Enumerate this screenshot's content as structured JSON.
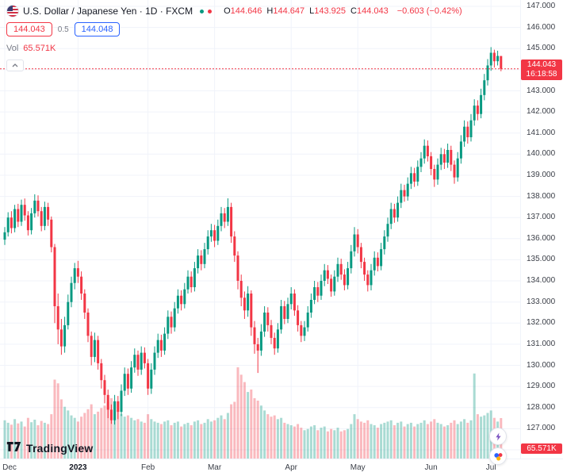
{
  "header": {
    "symbol_title": "U.S. Dollar / Japanese Yen · 1D · FXCM",
    "ohlc": {
      "o_label": "O",
      "o": "144.646",
      "h_label": "H",
      "h": "144.647",
      "l_label": "L",
      "l": "143.925",
      "c_label": "C",
      "c": "144.043",
      "change": "−0.603 (−0.42%)"
    }
  },
  "trade": {
    "sell_price": "144.043",
    "spread": "0.5",
    "buy_price": "144.048"
  },
  "volume_row": {
    "label": "Vol",
    "value": "65.571K"
  },
  "price_badge": {
    "price": "144.043",
    "countdown": "16:18:58"
  },
  "volume_badge": "65.571K",
  "footer": {
    "logo_text": "TradingView"
  },
  "chart_data": {
    "type": "candlestick",
    "title": "U.S. Dollar / Japanese Yen",
    "interval": "1D",
    "exchange": "FXCM",
    "last_price": 144.043,
    "price_line": 144.043,
    "ylim": [
      125.6,
      147.3
    ],
    "price_step": 1.0,
    "grid": true,
    "colors": {
      "up": "#089981",
      "down": "#f23645",
      "vol_up": "rgba(8,153,129,0.35)",
      "vol_down": "rgba(242,54,69,0.35)",
      "grid": "#f0f3fa",
      "axis_text": "#3a3e47",
      "accent_red": "#f23645",
      "accent_blue": "#2962ff"
    },
    "axes": {
      "price_ticks": [
        "147.000",
        "146.000",
        "145.000",
        "144.000",
        "143.000",
        "142.000",
        "141.000",
        "140.000",
        "139.000",
        "138.000",
        "137.000",
        "136.000",
        "135.000",
        "134.000",
        "133.000",
        "132.000",
        "131.000",
        "130.000",
        "129.000",
        "128.000",
        "127.000",
        "126.000"
      ],
      "time_ticks": [
        {
          "label": "Dec",
          "idx": 0
        },
        {
          "label": "2023",
          "idx": 22,
          "year": true
        },
        {
          "label": "Feb",
          "idx": 43
        },
        {
          "label": "Mar",
          "idx": 63
        },
        {
          "label": "Apr",
          "idx": 86
        },
        {
          "label": "May",
          "idx": 106
        },
        {
          "label": "Jun",
          "idx": 128
        },
        {
          "label": "Jul",
          "idx": 146
        }
      ]
    },
    "candles": [
      [
        135.95,
        136.55,
        135.7,
        136.3,
        62
      ],
      [
        136.3,
        137.25,
        136.1,
        137.0,
        58
      ],
      [
        137.0,
        137.3,
        136.25,
        136.5,
        55
      ],
      [
        136.5,
        137.6,
        136.3,
        137.4,
        64
      ],
      [
        137.4,
        137.65,
        136.55,
        136.8,
        57
      ],
      [
        136.8,
        137.85,
        136.6,
        137.6,
        60
      ],
      [
        137.6,
        137.9,
        136.85,
        137.1,
        52
      ],
      [
        137.1,
        137.3,
        136.15,
        136.4,
        66
      ],
      [
        136.4,
        137.45,
        136.2,
        137.2,
        59
      ],
      [
        137.2,
        138.1,
        137.0,
        137.8,
        63
      ],
      [
        137.8,
        138.05,
        137.05,
        137.3,
        54
      ],
      [
        137.3,
        137.5,
        136.35,
        136.6,
        61
      ],
      [
        136.6,
        137.75,
        136.4,
        137.5,
        58
      ],
      [
        137.5,
        137.7,
        136.6,
        136.9,
        56
      ],
      [
        136.9,
        137.05,
        135.35,
        135.6,
        72
      ],
      [
        135.6,
        135.75,
        132.0,
        132.8,
        128
      ],
      [
        132.8,
        133.4,
        131.0,
        131.7,
        122
      ],
      [
        131.7,
        132.2,
        130.5,
        130.9,
        96
      ],
      [
        130.9,
        132.3,
        130.6,
        131.9,
        84
      ],
      [
        131.9,
        133.35,
        131.7,
        133.0,
        78
      ],
      [
        133.0,
        134.2,
        132.75,
        133.9,
        70
      ],
      [
        133.9,
        134.85,
        133.6,
        134.6,
        66
      ],
      [
        134.6,
        134.95,
        133.9,
        134.2,
        60
      ],
      [
        134.2,
        134.45,
        133.1,
        133.4,
        68
      ],
      [
        133.4,
        133.6,
        132.2,
        132.5,
        74
      ],
      [
        132.5,
        132.7,
        131.1,
        131.4,
        80
      ],
      [
        131.4,
        131.6,
        130.0,
        130.4,
        88
      ],
      [
        130.4,
        131.55,
        130.15,
        131.2,
        72
      ],
      [
        131.2,
        131.4,
        129.8,
        130.1,
        76
      ],
      [
        130.1,
        130.3,
        128.9,
        129.3,
        82
      ],
      [
        129.3,
        129.55,
        128.2,
        128.6,
        86
      ],
      [
        128.6,
        128.85,
        127.5,
        127.9,
        92
      ],
      [
        127.9,
        128.15,
        127.23,
        127.4,
        98
      ],
      [
        127.4,
        128.6,
        127.2,
        128.3,
        90
      ],
      [
        128.3,
        128.55,
        127.45,
        127.8,
        76
      ],
      [
        127.8,
        129.1,
        127.6,
        128.8,
        72
      ],
      [
        128.8,
        129.9,
        128.55,
        129.6,
        68
      ],
      [
        129.6,
        129.85,
        128.6,
        128.9,
        70
      ],
      [
        128.9,
        130.2,
        128.7,
        129.9,
        66
      ],
      [
        129.9,
        130.8,
        129.65,
        130.5,
        62
      ],
      [
        130.5,
        130.7,
        129.5,
        129.8,
        64
      ],
      [
        129.8,
        130.9,
        129.55,
        130.6,
        60
      ],
      [
        130.6,
        130.85,
        129.85,
        130.1,
        58
      ],
      [
        130.1,
        130.3,
        128.6,
        128.9,
        72
      ],
      [
        128.9,
        130.1,
        128.65,
        129.8,
        64
      ],
      [
        129.8,
        130.9,
        129.55,
        130.6,
        60
      ],
      [
        130.6,
        131.5,
        130.35,
        131.2,
        58
      ],
      [
        131.2,
        131.45,
        130.4,
        130.7,
        56
      ],
      [
        130.7,
        131.8,
        130.5,
        131.5,
        60
      ],
      [
        131.5,
        132.6,
        131.25,
        132.3,
        62
      ],
      [
        132.3,
        132.55,
        131.5,
        131.8,
        54
      ],
      [
        131.8,
        133.0,
        131.6,
        132.7,
        58
      ],
      [
        132.7,
        133.6,
        132.45,
        133.3,
        60
      ],
      [
        133.3,
        133.55,
        132.6,
        132.9,
        52
      ],
      [
        132.9,
        133.9,
        132.7,
        133.6,
        56
      ],
      [
        133.6,
        134.5,
        133.4,
        134.2,
        58
      ],
      [
        134.2,
        134.45,
        133.45,
        133.7,
        54
      ],
      [
        133.7,
        134.9,
        133.5,
        134.6,
        60
      ],
      [
        134.6,
        135.5,
        134.35,
        135.2,
        62
      ],
      [
        135.2,
        135.45,
        134.5,
        134.8,
        56
      ],
      [
        134.8,
        135.8,
        134.6,
        135.5,
        58
      ],
      [
        135.5,
        136.4,
        135.25,
        136.1,
        64
      ],
      [
        136.1,
        136.7,
        135.85,
        136.4,
        60
      ],
      [
        136.4,
        136.65,
        135.6,
        135.9,
        62
      ],
      [
        135.9,
        136.9,
        135.7,
        136.6,
        66
      ],
      [
        136.6,
        137.5,
        136.35,
        137.2,
        70
      ],
      [
        137.2,
        137.45,
        136.5,
        136.8,
        64
      ],
      [
        136.8,
        137.91,
        136.6,
        137.5,
        74
      ],
      [
        137.5,
        137.7,
        135.8,
        136.1,
        88
      ],
      [
        136.1,
        136.35,
        134.9,
        135.2,
        92
      ],
      [
        135.2,
        135.4,
        133.6,
        134.0,
        148
      ],
      [
        134.0,
        134.3,
        132.8,
        133.2,
        136
      ],
      [
        133.2,
        133.5,
        132.2,
        132.6,
        124
      ],
      [
        132.6,
        133.75,
        132.3,
        133.4,
        108
      ],
      [
        133.4,
        133.55,
        131.4,
        131.8,
        112
      ],
      [
        131.8,
        132.1,
        130.55,
        131.0,
        98
      ],
      [
        131.0,
        131.3,
        129.64,
        130.7,
        94
      ],
      [
        130.7,
        131.95,
        130.45,
        131.6,
        86
      ],
      [
        131.6,
        132.8,
        131.35,
        132.5,
        78
      ],
      [
        132.5,
        132.75,
        131.6,
        131.9,
        72
      ],
      [
        131.9,
        132.15,
        131.0,
        131.3,
        68
      ],
      [
        131.3,
        131.55,
        130.5,
        130.8,
        70
      ],
      [
        130.8,
        132.0,
        130.6,
        131.7,
        64
      ],
      [
        131.7,
        133.1,
        131.5,
        132.8,
        66
      ],
      [
        132.8,
        133.05,
        131.95,
        132.2,
        58
      ],
      [
        132.2,
        133.2,
        132.0,
        132.9,
        56
      ],
      [
        132.9,
        133.7,
        132.65,
        133.4,
        54
      ],
      [
        133.4,
        133.6,
        132.35,
        132.6,
        52
      ],
      [
        132.6,
        132.85,
        131.6,
        131.9,
        56
      ],
      [
        131.9,
        132.1,
        131.1,
        131.4,
        50
      ],
      [
        131.4,
        132.1,
        131.15,
        131.8,
        46
      ],
      [
        131.8,
        132.8,
        131.6,
        132.5,
        48
      ],
      [
        132.5,
        133.4,
        132.25,
        133.1,
        52
      ],
      [
        133.1,
        134.0,
        132.9,
        133.7,
        54
      ],
      [
        133.7,
        133.95,
        133.0,
        133.3,
        46
      ],
      [
        133.3,
        134.3,
        133.1,
        134.0,
        50
      ],
      [
        134.0,
        134.8,
        133.75,
        134.5,
        52
      ],
      [
        134.5,
        134.75,
        133.85,
        134.1,
        44
      ],
      [
        134.1,
        134.3,
        133.25,
        133.5,
        48
      ],
      [
        133.5,
        134.5,
        133.3,
        134.2,
        46
      ],
      [
        134.2,
        135.1,
        133.95,
        134.8,
        50
      ],
      [
        134.8,
        135.05,
        134.05,
        134.3,
        44
      ],
      [
        134.3,
        134.55,
        133.55,
        133.8,
        46
      ],
      [
        133.8,
        134.9,
        133.6,
        134.6,
        48
      ],
      [
        134.6,
        135.7,
        134.35,
        135.4,
        56
      ],
      [
        135.4,
        136.55,
        135.15,
        136.2,
        72
      ],
      [
        136.2,
        136.45,
        135.3,
        135.6,
        64
      ],
      [
        135.6,
        135.8,
        134.6,
        134.9,
        60
      ],
      [
        134.9,
        135.1,
        134.0,
        134.3,
        58
      ],
      [
        134.3,
        134.5,
        133.5,
        133.8,
        62
      ],
      [
        133.8,
        134.8,
        133.55,
        134.5,
        56
      ],
      [
        134.5,
        135.4,
        134.25,
        135.1,
        54
      ],
      [
        135.1,
        135.35,
        134.45,
        134.7,
        50
      ],
      [
        134.7,
        135.8,
        134.5,
        135.5,
        56
      ],
      [
        135.5,
        136.4,
        135.25,
        136.1,
        58
      ],
      [
        136.1,
        137.0,
        135.85,
        136.7,
        60
      ],
      [
        136.7,
        137.7,
        136.45,
        137.4,
        62
      ],
      [
        137.4,
        137.65,
        136.75,
        137.0,
        54
      ],
      [
        137.0,
        138.0,
        136.8,
        137.7,
        58
      ],
      [
        137.7,
        138.6,
        137.45,
        138.3,
        60
      ],
      [
        138.3,
        138.55,
        137.75,
        138.0,
        52
      ],
      [
        138.0,
        138.9,
        137.8,
        138.6,
        56
      ],
      [
        138.6,
        139.4,
        138.35,
        139.1,
        58
      ],
      [
        139.1,
        139.35,
        138.45,
        138.7,
        52
      ],
      [
        138.7,
        139.7,
        138.5,
        139.4,
        56
      ],
      [
        139.4,
        140.1,
        139.15,
        139.8,
        58
      ],
      [
        139.8,
        140.7,
        139.55,
        140.4,
        62
      ],
      [
        140.4,
        140.65,
        139.65,
        139.9,
        56
      ],
      [
        139.9,
        140.1,
        139.0,
        139.3,
        60
      ],
      [
        139.3,
        139.5,
        138.45,
        138.8,
        64
      ],
      [
        138.8,
        139.8,
        138.55,
        139.5,
        58
      ],
      [
        139.5,
        140.3,
        139.25,
        140.0,
        56
      ],
      [
        140.0,
        140.25,
        139.3,
        139.6,
        52
      ],
      [
        139.6,
        140.5,
        139.35,
        140.2,
        54
      ],
      [
        140.2,
        140.4,
        139.2,
        139.5,
        58
      ],
      [
        139.5,
        139.7,
        138.6,
        138.9,
        62
      ],
      [
        138.9,
        140.1,
        138.7,
        139.8,
        56
      ],
      [
        139.8,
        140.9,
        139.55,
        140.6,
        60
      ],
      [
        140.6,
        141.6,
        140.35,
        141.3,
        64
      ],
      [
        141.3,
        141.55,
        140.5,
        140.8,
        58
      ],
      [
        140.8,
        141.9,
        140.6,
        141.6,
        62
      ],
      [
        141.6,
        142.6,
        141.35,
        142.3,
        138
      ],
      [
        142.3,
        142.55,
        141.6,
        141.9,
        72
      ],
      [
        141.9,
        143.1,
        141.7,
        142.8,
        68
      ],
      [
        142.8,
        143.8,
        142.55,
        143.5,
        70
      ],
      [
        143.5,
        144.5,
        143.25,
        144.2,
        74
      ],
      [
        144.2,
        145.07,
        143.95,
        144.8,
        78
      ],
      [
        144.8,
        144.95,
        144.1,
        144.4,
        66
      ],
      [
        144.4,
        144.9,
        144.2,
        144.65,
        60
      ],
      [
        144.646,
        144.647,
        143.925,
        144.043,
        65.571
      ]
    ]
  }
}
